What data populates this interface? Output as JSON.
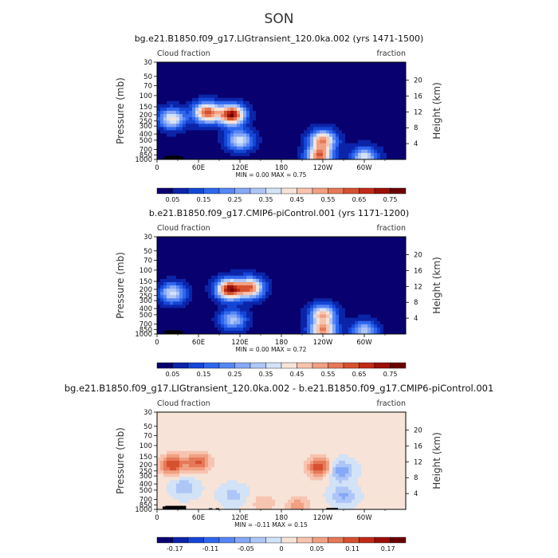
{
  "page_title": "SON",
  "chart_data": [
    {
      "type": "heatmap",
      "title": "bg.e21.B1850.f09_g17.LIGtransient_120.0ka.002 (yrs 1471-1500)",
      "left_label": "Cloud fraction",
      "right_label": "fraction",
      "ylabel": "Pressure (mb)",
      "ylabel_right": "Height (km)",
      "x_ticks": [
        "0",
        "60E",
        "120E",
        "180",
        "120W",
        "60W"
      ],
      "y_ticks": [
        "30",
        "50",
        "70",
        "100",
        "150",
        "200",
        "250",
        "300",
        "400",
        "500",
        "700",
        "850",
        "1000"
      ],
      "y_ticks_right": [
        "20",
        "16",
        "12",
        "8",
        "4"
      ],
      "min_max_label": "MIN = 0.00 MAX = 0.75",
      "colorbar_labels": [
        "0.05",
        "0.15",
        "0.25",
        "0.35",
        "0.45",
        "0.55",
        "0.65",
        "0.75"
      ],
      "colorbar_colors": [
        "#08006e",
        "#0b24a8",
        "#1446d6",
        "#2e66ee",
        "#5686f5",
        "#85a8f7",
        "#aec6f7",
        "#d2e2f7",
        "#f7e3d7",
        "#f7c4b0",
        "#f1a083",
        "#e67958",
        "#d6512f",
        "#c02a16",
        "#9a1008",
        "#6b0000"
      ],
      "hotspots": [
        {
          "lon": 108,
          "p": 200,
          "v": 0.72
        },
        {
          "lon": 72,
          "p": 185,
          "v": 0.6
        },
        {
          "lon": 22,
          "p": 230,
          "v": 0.4
        },
        {
          "lon": 240,
          "p": 500,
          "v": 0.5
        },
        {
          "lon": 235,
          "p": 900,
          "v": 0.55
        },
        {
          "lon": 300,
          "p": 920,
          "v": 0.35
        },
        {
          "lon": 120,
          "p": 500,
          "v": 0.35
        }
      ]
    },
    {
      "type": "heatmap",
      "title": "b.e21.B1850.f09_g17.CMIP6-piControl.001 (yrs 1171-1200)",
      "left_label": "Cloud fraction",
      "right_label": "fraction",
      "ylabel": "Pressure (mb)",
      "ylabel_right": "Height (km)",
      "x_ticks": [
        "0",
        "60E",
        "120E",
        "180",
        "120W",
        "60W"
      ],
      "y_ticks": [
        "30",
        "50",
        "70",
        "100",
        "150",
        "200",
        "250",
        "300",
        "400",
        "500",
        "700",
        "850",
        "1000"
      ],
      "y_ticks_right": [
        "20",
        "16",
        "12",
        "8",
        "4"
      ],
      "min_max_label": "MIN = 0.00 MAX = 0.72",
      "colorbar_labels": [
        "0.05",
        "0.15",
        "0.25",
        "0.35",
        "0.45",
        "0.55",
        "0.65",
        "0.75"
      ],
      "colorbar_colors": [
        "#08006e",
        "#0b24a8",
        "#1446d6",
        "#2e66ee",
        "#5686f5",
        "#85a8f7",
        "#aec6f7",
        "#d2e2f7",
        "#f7e3d7",
        "#f7c4b0",
        "#f1a083",
        "#e67958",
        "#d6512f",
        "#c02a16",
        "#9a1008",
        "#6b0000"
      ],
      "hotspots": [
        {
          "lon": 105,
          "p": 200,
          "v": 0.7
        },
        {
          "lon": 135,
          "p": 190,
          "v": 0.55
        },
        {
          "lon": 22,
          "p": 230,
          "v": 0.35
        },
        {
          "lon": 240,
          "p": 500,
          "v": 0.45
        },
        {
          "lon": 240,
          "p": 900,
          "v": 0.5
        },
        {
          "lon": 300,
          "p": 900,
          "v": 0.3
        },
        {
          "lon": 110,
          "p": 600,
          "v": 0.3
        }
      ]
    },
    {
      "type": "heatmap",
      "title": "bg.e21.B1850.f09_g17.LIGtransient_120.0ka.002 - b.e21.B1850.f09_g17.CMIP6-piControl.001",
      "left_label": "Cloud fraction",
      "right_label": "fraction",
      "ylabel": "Pressure (mb)",
      "ylabel_right": "Height (km)",
      "x_ticks": [
        "0",
        "60E",
        "120E",
        "180",
        "120W",
        "60W"
      ],
      "y_ticks": [
        "30",
        "50",
        "70",
        "100",
        "150",
        "200",
        "250",
        "300",
        "400",
        "500",
        "700",
        "850",
        "1000"
      ],
      "y_ticks_right": [
        "20",
        "16",
        "12",
        "8",
        "4"
      ],
      "min_max_label": "MIN = -0.11 MAX = 0.15",
      "colorbar_labels": [
        "-0.17",
        "-0.11",
        "-0.05",
        "0",
        "0.05",
        "0.11",
        "0.17"
      ],
      "colorbar_colors": [
        "#08006e",
        "#0b24a8",
        "#1446d6",
        "#2e66ee",
        "#5686f5",
        "#85a8f7",
        "#aec6f7",
        "#d2e2f7",
        "#f7e3d7",
        "#f7c4b0",
        "#f1a083",
        "#e67958",
        "#d6512f",
        "#c02a16",
        "#9a1008",
        "#6b0000"
      ],
      "hotspots": [
        {
          "lon": 22,
          "p": 200,
          "v": 0.12
        },
        {
          "lon": 60,
          "p": 180,
          "v": 0.1
        },
        {
          "lon": 235,
          "p": 220,
          "v": 0.12
        },
        {
          "lon": 265,
          "p": 250,
          "v": -0.08
        },
        {
          "lon": 270,
          "p": 600,
          "v": -0.06
        },
        {
          "lon": 40,
          "p": 450,
          "v": -0.05
        },
        {
          "lon": 110,
          "p": 600,
          "v": -0.04
        },
        {
          "lon": 205,
          "p": 880,
          "v": 0.06
        },
        {
          "lon": 155,
          "p": 800,
          "v": 0.04
        }
      ]
    }
  ]
}
